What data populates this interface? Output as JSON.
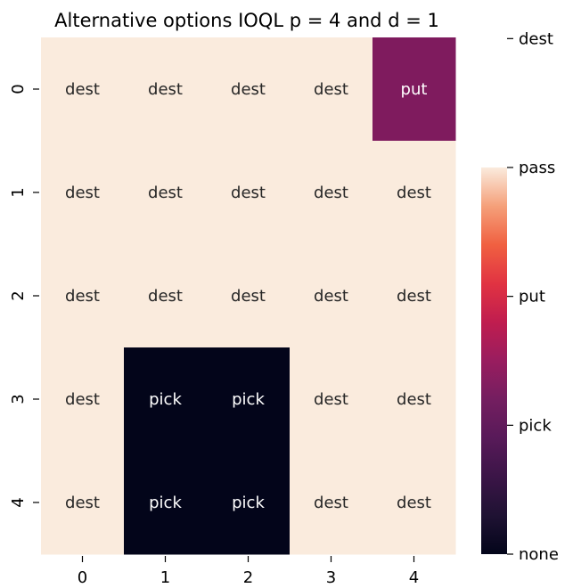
{
  "chart_data": {
    "type": "heatmap",
    "title": "Alternative options IOQL p = 4 and d = 1",
    "xlabel": "",
    "ylabel": "",
    "x_tick_labels": [
      "0",
      "1",
      "2",
      "3",
      "4"
    ],
    "y_tick_labels": [
      "0",
      "1",
      "2",
      "3",
      "4"
    ],
    "cells": [
      [
        "dest",
        "dest",
        "dest",
        "dest",
        "put"
      ],
      [
        "dest",
        "dest",
        "dest",
        "dest",
        "dest"
      ],
      [
        "dest",
        "dest",
        "dest",
        "dest",
        "dest"
      ],
      [
        "dest",
        "pick",
        "pick",
        "dest",
        "dest"
      ],
      [
        "dest",
        "pick",
        "pick",
        "dest",
        "dest"
      ]
    ],
    "colorbar": {
      "ticks": [
        "none",
        "pick",
        "put",
        "pass",
        "dest"
      ],
      "range": [
        "none",
        "pass"
      ]
    },
    "colors": {
      "dest": "#faebdd",
      "put": "#7f1b5e",
      "pick": "#03051a",
      "text_light": "#ffffff",
      "text_dark": "#262626"
    },
    "grid": false,
    "legend": "right"
  }
}
